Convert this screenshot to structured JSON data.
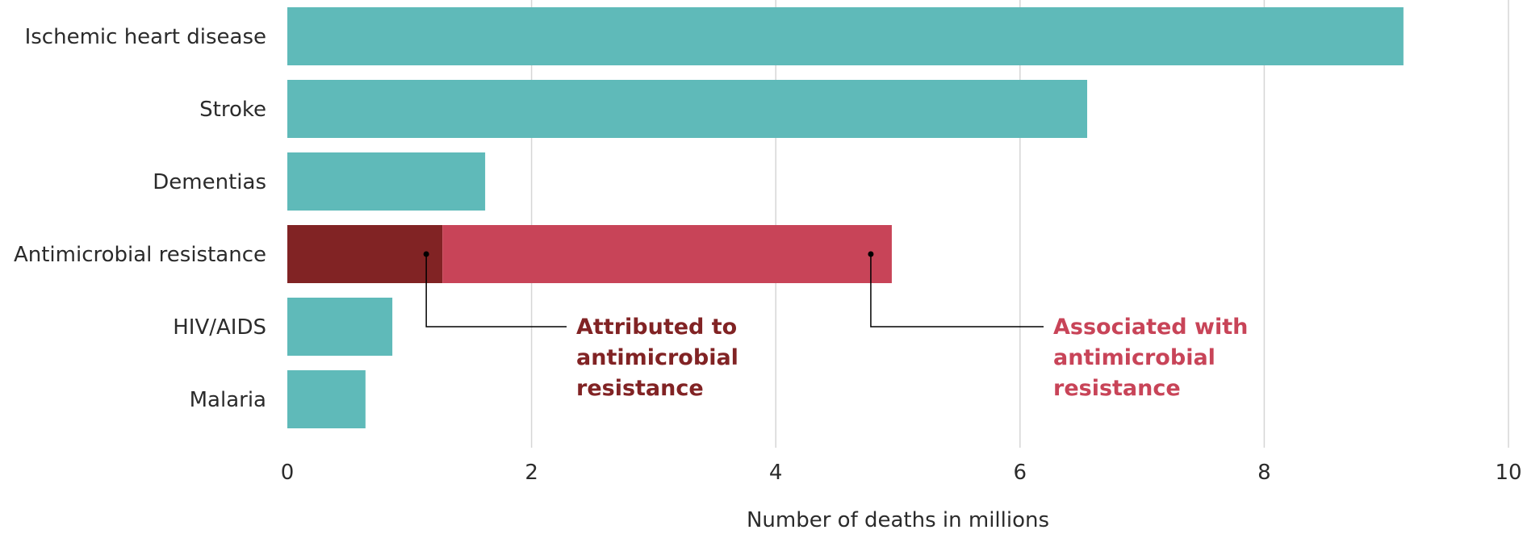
{
  "chart_data": {
    "type": "bar",
    "orientation": "horizontal",
    "categories": [
      "Ischemic heart disease",
      "Stroke",
      "Dementias",
      "Antimicrobial resistance",
      "HIV/AIDS",
      "Malaria"
    ],
    "values": [
      9.14,
      6.55,
      1.62,
      4.95,
      0.86,
      0.64
    ],
    "antimicrobial_breakdown": {
      "attributed": 1.27,
      "associated": 4.95
    },
    "xlabel": "Number of deaths in millions",
    "ylabel": "",
    "title": "",
    "xlim": [
      0,
      10
    ],
    "xticks": [
      "0",
      "2",
      "4",
      "6",
      "8",
      "10"
    ],
    "grid": "vertical",
    "colors": {
      "default_bar": "#5fbab9",
      "attributed": "#812324",
      "associated": "#c84458",
      "grid": "#d6d6d6",
      "text": "#2b2b2b"
    },
    "annotations": [
      {
        "key": "attributed",
        "lines": [
          "Attributed to",
          "antimicrobial",
          "resistance"
        ],
        "color": "#812324"
      },
      {
        "key": "associated",
        "lines": [
          "Associated with",
          "antimicrobial",
          "resistance"
        ],
        "color": "#c84458"
      }
    ]
  }
}
